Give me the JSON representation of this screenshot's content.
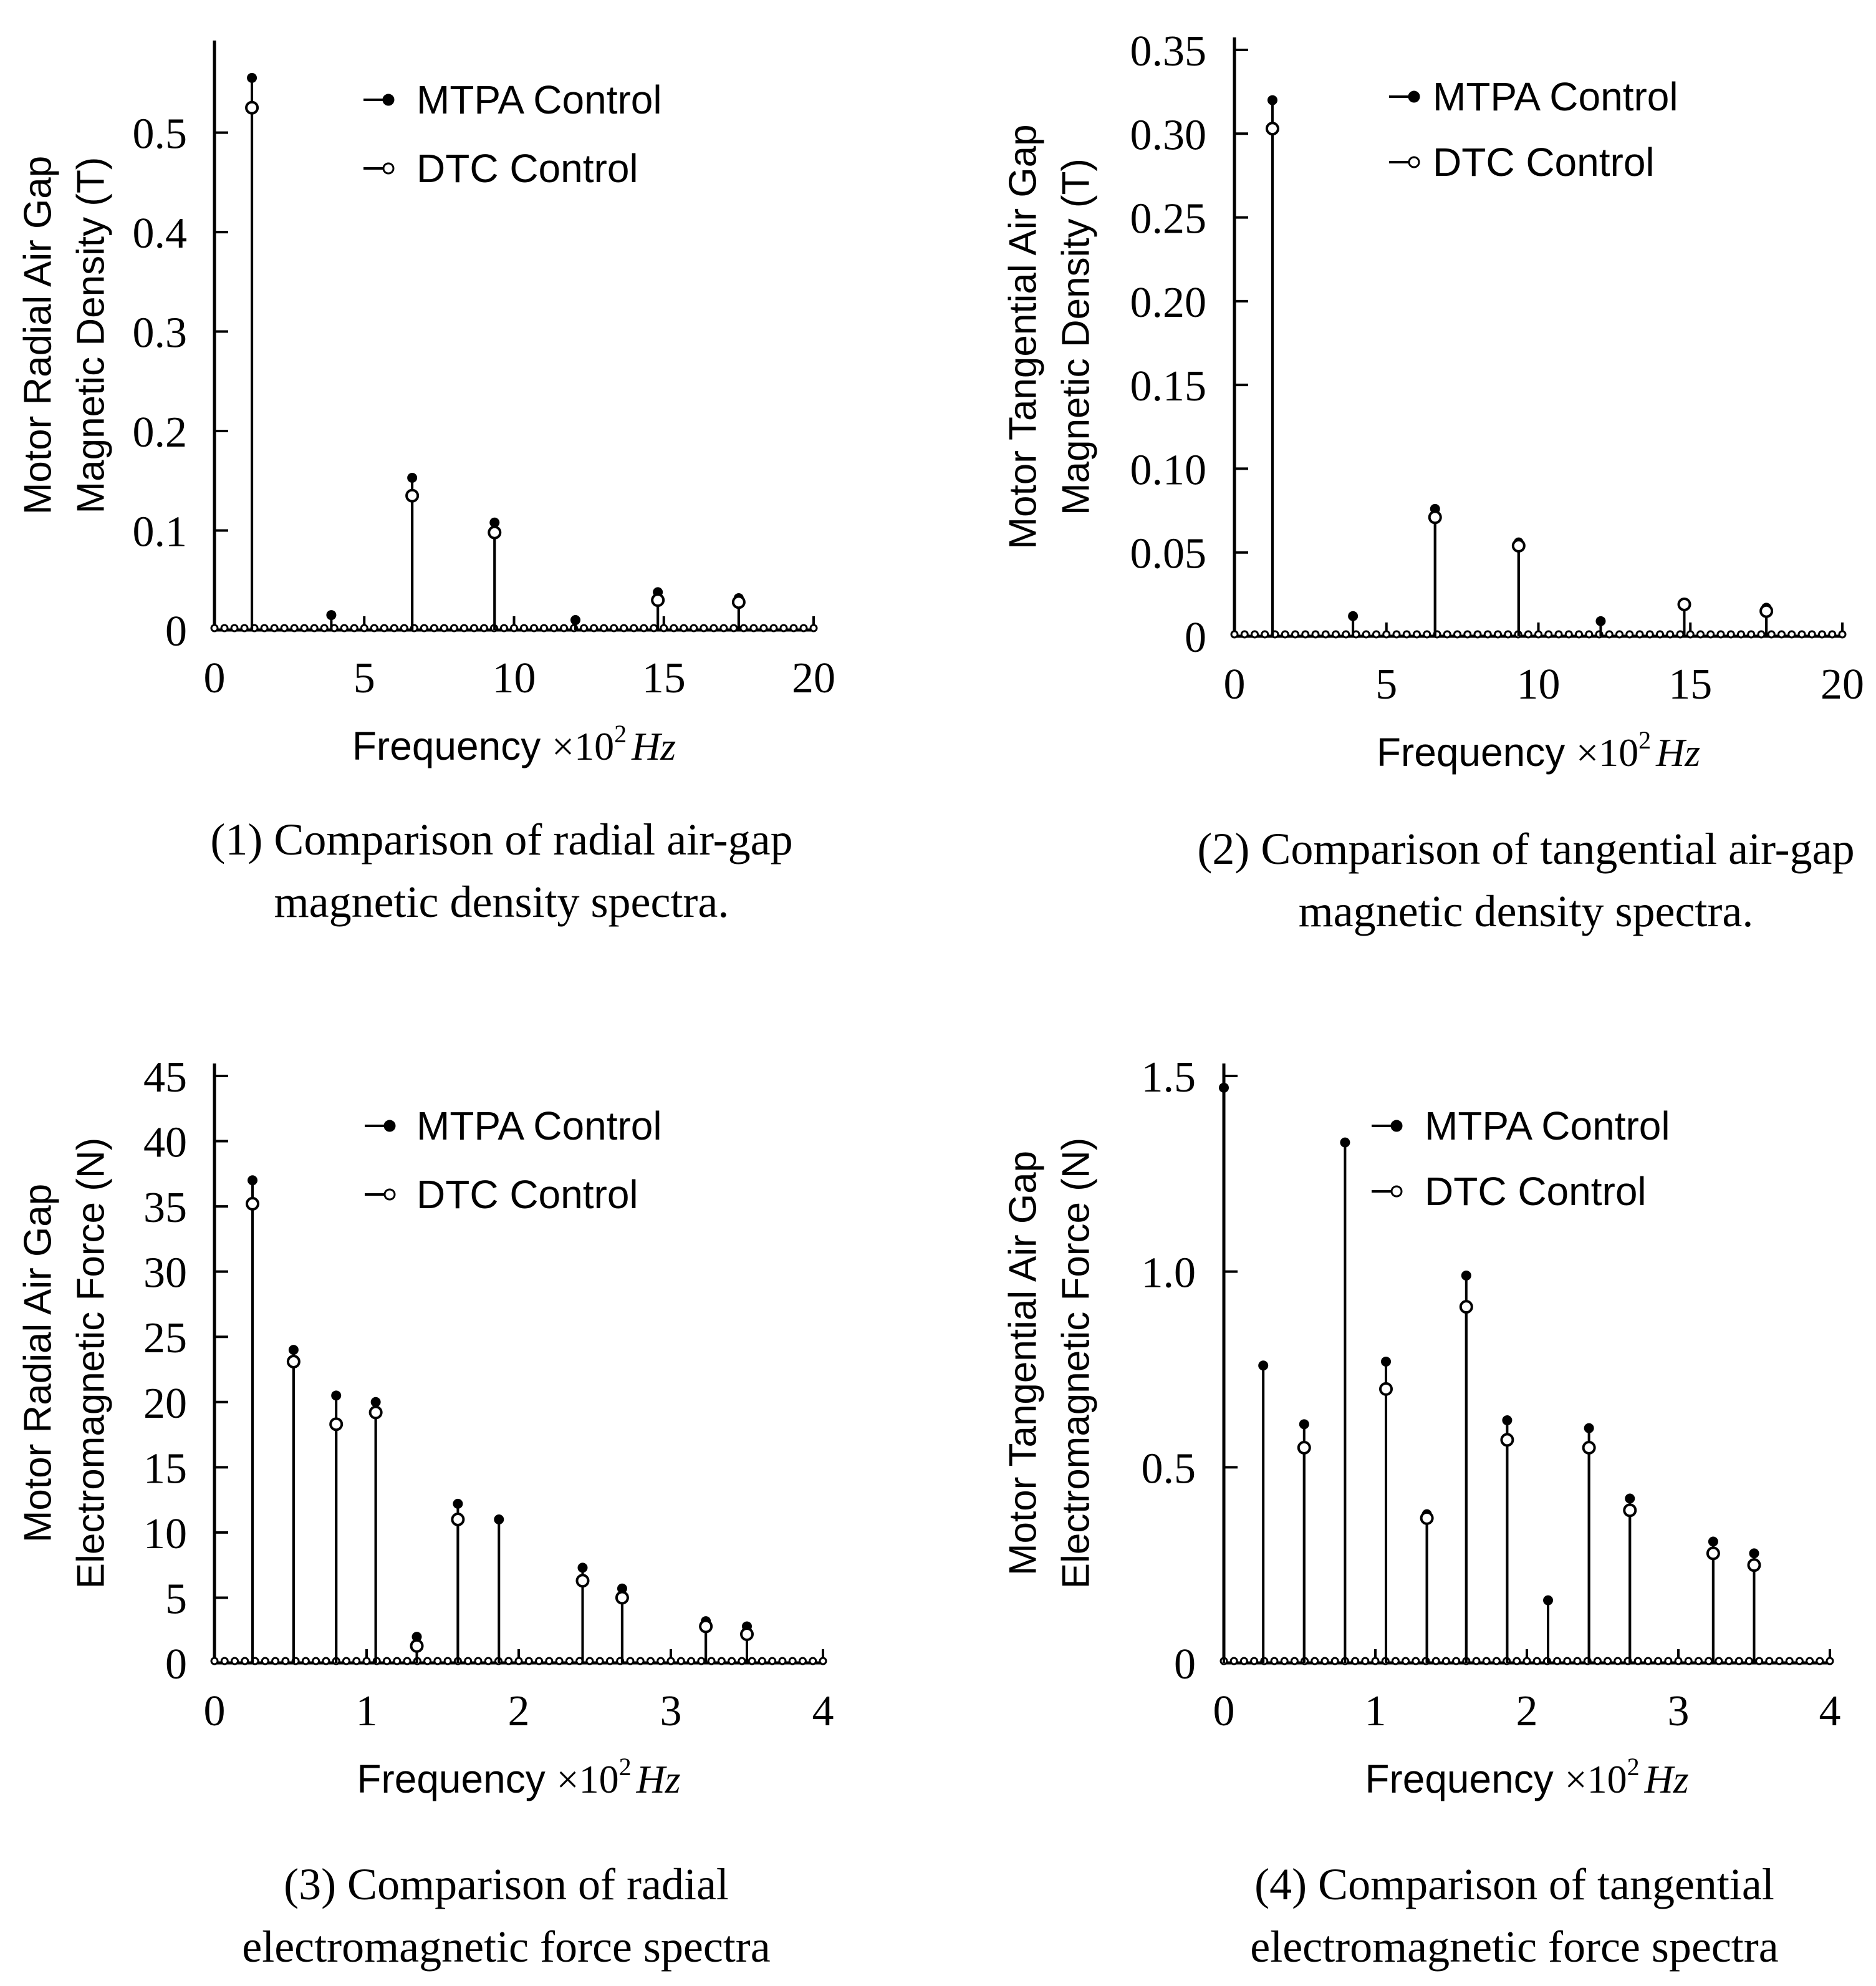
{
  "units": {
    "base": "Frequency",
    "mult": "×10",
    "exp": "2",
    "unit": "Hz"
  },
  "chart_data": [
    {
      "id": "p1",
      "type": "stem",
      "title": [
        "(1)  Comparison of radial air-gap",
        "magnetic density spectra."
      ],
      "ylabel": [
        "Motor Radial Air Gap",
        "Magnetic Density  (T)"
      ],
      "xlabel": "Frequency",
      "xlim": [
        0,
        20
      ],
      "ylim": [
        0,
        0.58
      ],
      "xticks": [
        "0",
        "5",
        "10",
        "15",
        "20"
      ],
      "xtick_values": [
        0,
        5,
        10,
        15,
        20
      ],
      "yticks": [
        "0",
        "0.1",
        "0.2",
        "0.3",
        "0.4",
        "0.5"
      ],
      "ytick_values": [
        0,
        0.1,
        0.2,
        0.3,
        0.4,
        0.5
      ],
      "series": [
        {
          "name": "MTPA Control",
          "marker": "filled",
          "x": [
            1.25,
            3.9,
            6.6,
            9.35,
            12.05,
            14.8,
            17.5
          ],
          "values": [
            0.555,
            0.015,
            0.153,
            0.108,
            0.01,
            0.038,
            0.032
          ]
        },
        {
          "name": "DTC Control",
          "marker": "hollow",
          "x": [
            1.25,
            6.6,
            9.35,
            14.8,
            17.5
          ],
          "values": [
            0.525,
            0.135,
            0.098,
            0.03,
            0.028
          ]
        }
      ]
    },
    {
      "id": "p2",
      "type": "stem",
      "title": [
        "(2)  Comparison of tangential air-gap",
        "magnetic density spectra."
      ],
      "ylabel": [
        "Motor Tangential Air Gap",
        "Magnetic Density  (T)"
      ],
      "xlabel": "Frequency",
      "xlim": [
        0,
        20
      ],
      "ylim": [
        0,
        0.35
      ],
      "xticks": [
        "0",
        "5",
        "10",
        "15",
        "20"
      ],
      "xtick_values": [
        0,
        5,
        10,
        15,
        20
      ],
      "yticks": [
        "0",
        "0.05",
        "0.10",
        "0.15",
        "0.20",
        "0.25",
        "0.30",
        "0.35"
      ],
      "ytick_values": [
        0,
        0.05,
        0.1,
        0.15,
        0.2,
        0.25,
        0.3,
        0.35
      ],
      "series": [
        {
          "name": "MTPA Control",
          "marker": "filled",
          "x": [
            1.25,
            3.9,
            6.6,
            9.35,
            12.05,
            14.8,
            17.5
          ],
          "values": [
            0.32,
            0.012,
            0.076,
            0.056,
            0.009,
            0.02,
            0.017
          ]
        },
        {
          "name": "DTC Control",
          "marker": "hollow",
          "x": [
            1.25,
            6.6,
            9.35,
            14.8,
            17.5
          ],
          "values": [
            0.303,
            0.071,
            0.054,
            0.019,
            0.015
          ]
        }
      ]
    },
    {
      "id": "p3",
      "type": "stem",
      "title": [
        "(3)  Comparison of radial",
        "electromagnetic force spectra"
      ],
      "ylabel": [
        "Motor Radial Air Gap",
        "Electromagnetic Force  (N)"
      ],
      "xlabel": "Frequency",
      "xlim": [
        0,
        4
      ],
      "ylim": [
        0,
        45
      ],
      "xticks": [
        "0",
        "1",
        "2",
        "3",
        "4"
      ],
      "xtick_values": [
        0,
        1,
        2,
        3,
        4
      ],
      "yticks": [
        "0",
        "5",
        "10",
        "15",
        "20",
        "25",
        "30",
        "35",
        "40",
        "45"
      ],
      "ytick_values": [
        0,
        5,
        10,
        15,
        20,
        25,
        30,
        35,
        40,
        45
      ],
      "series": [
        {
          "name": "MTPA Control",
          "marker": "filled",
          "x": [
            0.25,
            0.52,
            0.8,
            1.06,
            1.33,
            1.6,
            1.87,
            2.42,
            2.68,
            3.23,
            3.5
          ],
          "values": [
            37,
            24,
            20.5,
            20,
            2,
            12.2,
            11,
            7.3,
            5.7,
            3.2,
            2.8
          ]
        },
        {
          "name": "DTC Control",
          "marker": "hollow",
          "x": [
            0.25,
            0.52,
            0.8,
            1.06,
            1.33,
            1.6,
            2.42,
            2.68,
            3.23,
            3.5
          ],
          "values": [
            35.2,
            23.1,
            18.3,
            19.2,
            1.3,
            11,
            6.3,
            5,
            2.8,
            2.2
          ]
        }
      ]
    },
    {
      "id": "p4",
      "type": "stem",
      "title": [
        "(4)  Comparison of tangential",
        "electromagnetic force spectra"
      ],
      "ylabel": [
        "Motor Tangential Air Gap",
        "Electromagnetic Force  (N)"
      ],
      "xlabel": "Frequency",
      "xlim": [
        0,
        4
      ],
      "ylim": [
        0,
        1.5
      ],
      "xticks": [
        "0",
        "1",
        "2",
        "3",
        "4"
      ],
      "xtick_values": [
        0,
        1,
        2,
        3,
        4
      ],
      "yticks": [
        "0",
        "0.5",
        "1.0",
        "1.5"
      ],
      "ytick_values": [
        0,
        0.5,
        1.0,
        1.5
      ],
      "series": [
        {
          "name": "MTPA Control",
          "marker": "filled",
          "x": [
            0,
            0.26,
            0.53,
            0.8,
            1.07,
            1.34,
            1.6,
            1.87,
            2.14,
            2.41,
            2.68,
            3.23,
            3.5
          ],
          "values": [
            1.47,
            0.76,
            0.61,
            1.33,
            0.77,
            0.38,
            0.99,
            0.62,
            0.16,
            0.6,
            0.42,
            0.31,
            0.28
          ]
        },
        {
          "name": "DTC Control",
          "marker": "hollow",
          "x": [
            0.53,
            1.07,
            1.34,
            1.6,
            1.87,
            2.41,
            2.68,
            3.23,
            3.5
          ],
          "values": [
            0.55,
            0.7,
            0.37,
            0.91,
            0.57,
            0.55,
            0.39,
            0.28,
            0.25
          ]
        }
      ]
    }
  ]
}
